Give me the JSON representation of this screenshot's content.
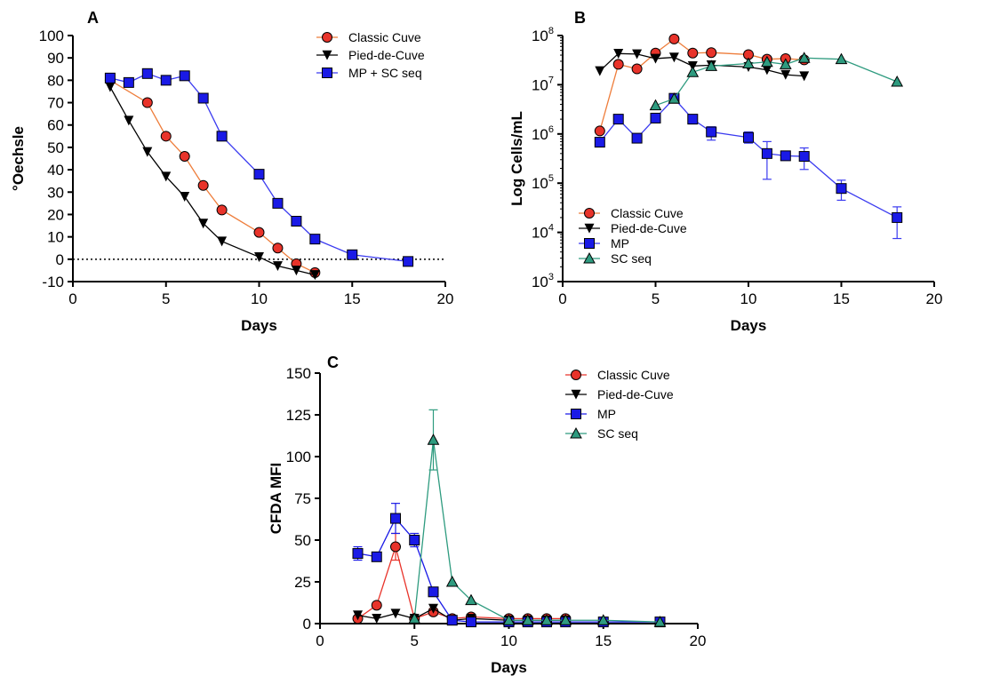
{
  "chart_data": [
    {
      "panel": "A",
      "type": "line",
      "xlabel": "Days",
      "ylabel": "°Oechsle",
      "xlim": [
        0,
        20
      ],
      "ylim": [
        -10,
        100
      ],
      "xticks": [
        0,
        5,
        10,
        15,
        20
      ],
      "yticks": [
        -10,
        0,
        10,
        20,
        30,
        40,
        50,
        60,
        70,
        80,
        90,
        100
      ],
      "reference_line": {
        "y": 0,
        "style": "dotted"
      },
      "legend_position": "top-right",
      "series": [
        {
          "name": "Classic Cuve",
          "marker": "circle",
          "color": "#e8332a",
          "line_color": "#ee7d3b",
          "x": [
            2,
            4,
            5,
            6,
            7,
            8,
            10,
            11,
            12,
            13
          ],
          "y": [
            80,
            70,
            55,
            46,
            33,
            22,
            12,
            5,
            -2,
            -6
          ]
        },
        {
          "name": "Pied-de-Cuve",
          "marker": "triangle-down",
          "color": "#000000",
          "line_color": "#000000",
          "x": [
            2,
            3,
            4,
            5,
            6,
            7,
            8,
            10,
            11,
            12,
            13
          ],
          "y": [
            77,
            62,
            48,
            37,
            28,
            16,
            8,
            1,
            -3,
            -5,
            -7
          ]
        },
        {
          "name": "MP + SC seq",
          "marker": "square",
          "color": "#1a1ae6",
          "line_color": "#3b3bf0",
          "x": [
            2,
            3,
            4,
            5,
            6,
            7,
            8,
            10,
            11,
            12,
            13,
            15,
            18
          ],
          "y": [
            81,
            79,
            83,
            80,
            82,
            72,
            55,
            38,
            25,
            17,
            9,
            2,
            -1
          ]
        }
      ]
    },
    {
      "panel": "B",
      "type": "line",
      "xlabel": "Days",
      "ylabel": "Log Cells/mL",
      "y_scale": "log",
      "xlim": [
        0,
        20
      ],
      "ylim": [
        1000,
        100000000
      ],
      "xticks": [
        0,
        5,
        10,
        15,
        20
      ],
      "ytick_base": "10",
      "ytick_exponents": [
        "3",
        "4",
        "5",
        "6",
        "7",
        "8"
      ],
      "legend_position": "bottom-left",
      "series": [
        {
          "name": "Classic Cuve",
          "marker": "circle",
          "color": "#e8332a",
          "line_color": "#ee7d3b",
          "x": [
            2,
            3,
            4,
            5,
            6,
            7,
            8,
            10,
            11,
            12,
            13
          ],
          "y": [
            1150000,
            26000000,
            21000000,
            44000000,
            85000000,
            44000000,
            45000000,
            41000000,
            33000000,
            34000000,
            32000000
          ]
        },
        {
          "name": "Pied-de-Cuve",
          "marker": "triangle-down",
          "color": "#000000",
          "line_color": "#000000",
          "x": [
            2,
            3,
            4,
            5,
            6,
            7,
            8,
            10,
            11,
            12,
            13
          ],
          "y": [
            19000000,
            43000000,
            42000000,
            34000000,
            36000000,
            24000000,
            25000000,
            23000000,
            20000000,
            16000000,
            15000000
          ]
        },
        {
          "name": "MP",
          "marker": "square",
          "color": "#1a1ae6",
          "line_color": "#3b3bf0",
          "x": [
            2,
            3,
            4,
            5,
            6,
            7,
            8,
            10,
            11,
            12,
            13,
            15,
            18
          ],
          "y": [
            680000,
            2000000,
            820000,
            2100000,
            5300000,
            2000000,
            1100000,
            850000,
            400000,
            360000,
            350000,
            78000,
            20000
          ],
          "error_low": [
            680000,
            2000000,
            820000,
            2100000,
            5300000,
            1600000,
            750000,
            650000,
            120000,
            290000,
            190000,
            45000,
            7500
          ],
          "error_high": [
            680000,
            2000000,
            820000,
            2100000,
            5300000,
            2400000,
            1400000,
            1100000,
            700000,
            430000,
            520000,
            115000,
            33000
          ]
        },
        {
          "name": "SC seq",
          "marker": "triangle-up",
          "color": "#2e9b7f",
          "line_color": "#2e9b7f",
          "x": [
            5,
            6,
            7,
            8,
            10,
            11,
            12,
            13,
            15,
            18
          ],
          "y": [
            3800000,
            5200000,
            18000000,
            24000000,
            27000000,
            29000000,
            26000000,
            35000000,
            33000000,
            11500000
          ]
        }
      ]
    },
    {
      "panel": "C",
      "type": "line",
      "xlabel": "Days",
      "ylabel": "CFDA MFI",
      "xlim": [
        0,
        20
      ],
      "ylim": [
        0,
        150
      ],
      "xticks": [
        0,
        5,
        10,
        15,
        20
      ],
      "yticks": [
        0,
        25,
        50,
        75,
        100,
        125,
        150
      ],
      "legend_position": "top-right",
      "series": [
        {
          "name": "Classic Cuve",
          "marker": "circle",
          "color": "#e8332a",
          "line_color": "#e8332a",
          "x": [
            2,
            3,
            4,
            5,
            6,
            7,
            8,
            10,
            11,
            12,
            13
          ],
          "y": [
            3,
            11,
            46,
            3,
            7,
            3,
            4,
            3,
            3,
            3,
            3
          ],
          "error": [
            0,
            0,
            8,
            0,
            2,
            0,
            0,
            0,
            0,
            0,
            0
          ]
        },
        {
          "name": "Pied-de-Cuve",
          "marker": "triangle-down",
          "color": "#000000",
          "line_color": "#000000",
          "x": [
            2,
            3,
            4,
            5,
            6,
            7,
            8,
            10,
            11,
            12,
            13
          ],
          "y": [
            5,
            3,
            6,
            3,
            9,
            2,
            3,
            2,
            2,
            2,
            2
          ],
          "error": [
            0,
            0,
            0,
            0,
            0,
            0,
            0,
            0,
            0,
            0,
            0
          ]
        },
        {
          "name": "MP",
          "marker": "square",
          "color": "#1a1ae6",
          "line_color": "#1a1ae6",
          "x": [
            2,
            3,
            4,
            5,
            6,
            7,
            8,
            10,
            11,
            12,
            13,
            15,
            18
          ],
          "y": [
            42,
            40,
            63,
            50,
            19,
            2,
            1,
            1,
            1,
            1,
            1,
            1,
            1
          ],
          "error": [
            4,
            0,
            9,
            4,
            0,
            0,
            0,
            0,
            0,
            0,
            0,
            0,
            0
          ]
        },
        {
          "name": "SC seq",
          "marker": "triangle-up",
          "color": "#2e9b7f",
          "line_color": "#2e9b7f",
          "x": [
            5,
            6,
            7,
            8,
            10,
            11,
            12,
            13,
            15,
            18
          ],
          "y": [
            3,
            110,
            25,
            14,
            2,
            2,
            2,
            2,
            2,
            1
          ],
          "error": [
            0,
            18,
            0,
            0,
            0,
            0,
            0,
            0,
            0,
            0
          ]
        }
      ]
    }
  ]
}
